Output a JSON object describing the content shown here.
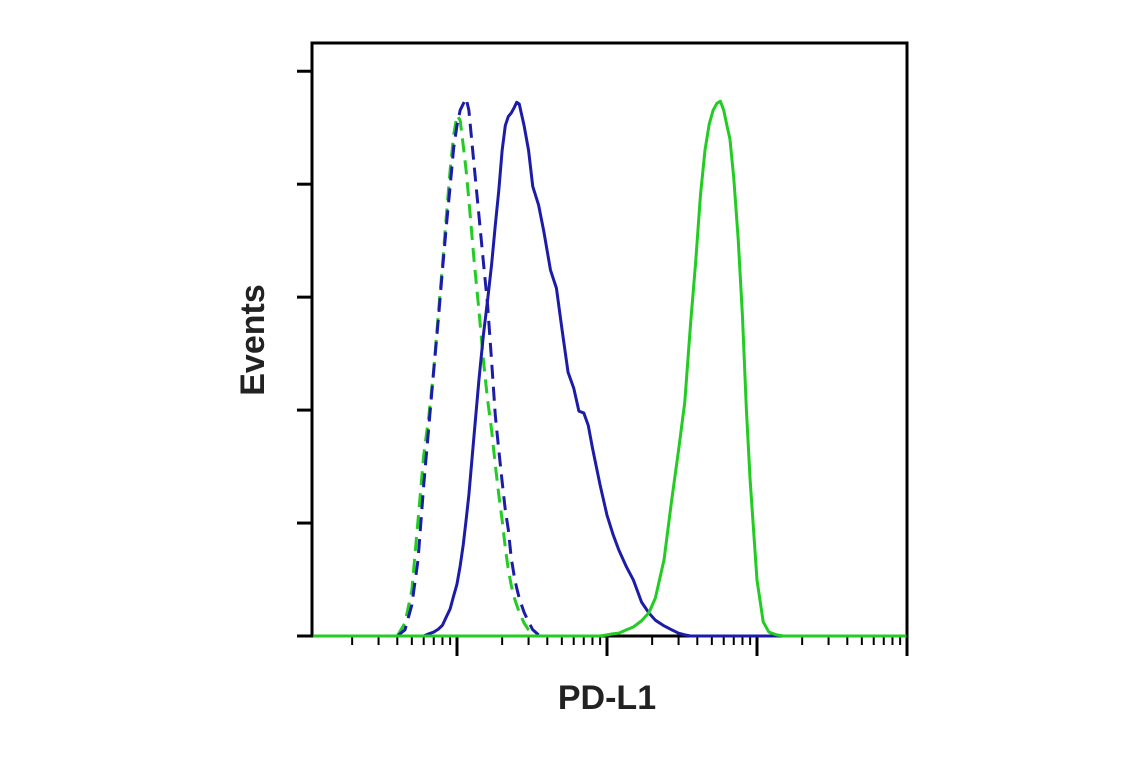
{
  "chart_data": {
    "type": "line",
    "x_label": "PD-L1",
    "y_label": "Events",
    "xscale": "log",
    "xlim": [
      1.08,
      10000
    ],
    "xticks": [
      10,
      100,
      1000,
      10000
    ],
    "ylim": [
      0,
      105
    ],
    "yticks": [
      0,
      20,
      40,
      60,
      80,
      100
    ],
    "x": [
      1.1,
      2,
      3,
      3.5,
      4,
      4.5,
      5,
      5.5,
      6,
      6.5,
      7,
      7.5,
      8,
      8.5,
      9,
      9.5,
      10,
      10.5,
      11,
      11.5,
      12,
      13,
      14,
      15,
      16,
      17,
      18,
      19,
      20,
      21,
      22,
      23,
      24,
      25,
      26,
      28,
      30,
      32,
      35,
      38,
      42,
      46,
      50,
      55,
      60,
      65,
      70,
      75,
      80,
      90,
      100,
      110,
      120,
      135,
      150,
      170,
      190,
      210,
      240,
      270,
      300,
      330,
      360,
      390,
      420,
      450,
      480,
      510,
      540,
      570,
      600,
      630,
      660,
      700,
      750,
      800,
      850,
      900,
      1000,
      1100,
      1200,
      1350,
      1500,
      3000,
      9900
    ],
    "series": [
      {
        "color": "#22cc22",
        "dashed": true,
        "values": [
          null,
          null,
          null,
          null,
          0,
          2.3,
          8.1,
          20.5,
          32.0,
          39.1,
          47.1,
          56.8,
          65.7,
          74.5,
          82.5,
          88.7,
          92.2,
          91.3,
          86.9,
          82.5,
          77.2,
          66.5,
          57.7,
          48.8,
          41.8,
          36.5,
          30.3,
          25.0,
          20.5,
          15.6,
          11.7,
          9.0,
          6.9,
          5.5,
          4.2,
          2.3,
          1.1,
          0.5,
          0,
          null,
          null,
          null,
          null,
          null,
          null,
          null,
          null,
          null,
          null,
          null,
          null,
          null,
          null,
          null,
          null,
          null,
          null,
          null,
          null,
          null,
          null,
          null,
          null,
          null,
          null,
          null,
          null,
          null,
          null,
          null,
          null,
          null,
          null,
          null,
          null,
          null,
          null,
          null,
          null,
          null,
          null,
          null,
          null,
          null,
          null
        ]
      },
      {
        "color": "#1c1ca8",
        "dashed": true,
        "values": [
          null,
          null,
          null,
          null,
          0,
          1.1,
          5.5,
          13.5,
          26.7,
          37.3,
          47.1,
          55.9,
          64.8,
          72.7,
          79.6,
          86.4,
          90.4,
          93.1,
          94.2,
          95.2,
          93.1,
          83.4,
          74.5,
          66.2,
          58.6,
          48.8,
          39.1,
          32.9,
          27.3,
          22.3,
          18.8,
          13.8,
          10.8,
          8.5,
          6.7,
          4.2,
          2.5,
          1.1,
          0.2,
          null,
          null,
          null,
          null,
          null,
          null,
          null,
          null,
          null,
          null,
          null,
          null,
          null,
          null,
          null,
          null,
          null,
          null,
          null,
          null,
          null,
          null,
          null,
          null,
          null,
          null,
          null,
          null,
          null,
          null,
          null,
          null,
          null,
          null,
          null,
          null,
          null,
          null,
          null,
          null,
          null,
          null,
          null,
          null,
          null,
          null
        ]
      },
      {
        "color": "#1c1ca8",
        "dashed": false,
        "values": [
          0,
          0,
          0,
          0,
          0,
          0,
          0,
          0,
          0,
          0.4,
          0.7,
          1.2,
          1.9,
          3.4,
          4.8,
          7.1,
          9.2,
          12.4,
          16.1,
          20.5,
          25.0,
          35.6,
          45.3,
          53.3,
          59.5,
          65.7,
          72.7,
          78.9,
          86.0,
          90.4,
          92.0,
          92.6,
          93.5,
          94.5,
          94.2,
          90.4,
          86.0,
          79.6,
          76.3,
          71.5,
          64.8,
          61.6,
          54.5,
          46.7,
          43.9,
          39.8,
          39.5,
          37.3,
          33.3,
          26.7,
          21.4,
          17.9,
          15.2,
          12.2,
          9.9,
          6.0,
          4.1,
          2.8,
          1.8,
          1.1,
          0.5,
          0.2,
          0,
          0,
          0,
          0,
          0,
          0,
          0,
          0,
          0,
          0,
          0,
          0,
          0,
          0,
          0,
          0,
          0,
          0,
          0,
          0,
          0,
          0,
          0
        ]
      },
      {
        "color": "#22cc22",
        "dashed": false,
        "values": [
          0,
          0,
          0,
          0,
          0,
          0,
          0,
          0,
          0,
          0,
          0,
          0,
          0,
          0,
          0,
          0,
          0,
          0,
          0,
          0,
          0,
          0,
          0,
          0,
          0,
          0,
          0,
          0,
          0,
          0,
          0,
          0,
          0,
          0,
          0,
          0,
          0,
          0,
          0,
          0,
          0,
          0,
          0,
          0,
          0,
          0,
          0,
          0,
          0,
          0,
          0.2,
          0.4,
          0.5,
          1.1,
          1.6,
          2.7,
          4.1,
          6.7,
          13.5,
          24.1,
          32.9,
          41.4,
          55.0,
          66.2,
          78.1,
          86.0,
          90.6,
          93.1,
          94.3,
          94.7,
          93.1,
          90.4,
          88.0,
          81.1,
          70.1,
          56.6,
          40.0,
          27.6,
          9.9,
          2.5,
          0.7,
          0.2,
          0,
          0,
          0
        ]
      }
    ]
  }
}
